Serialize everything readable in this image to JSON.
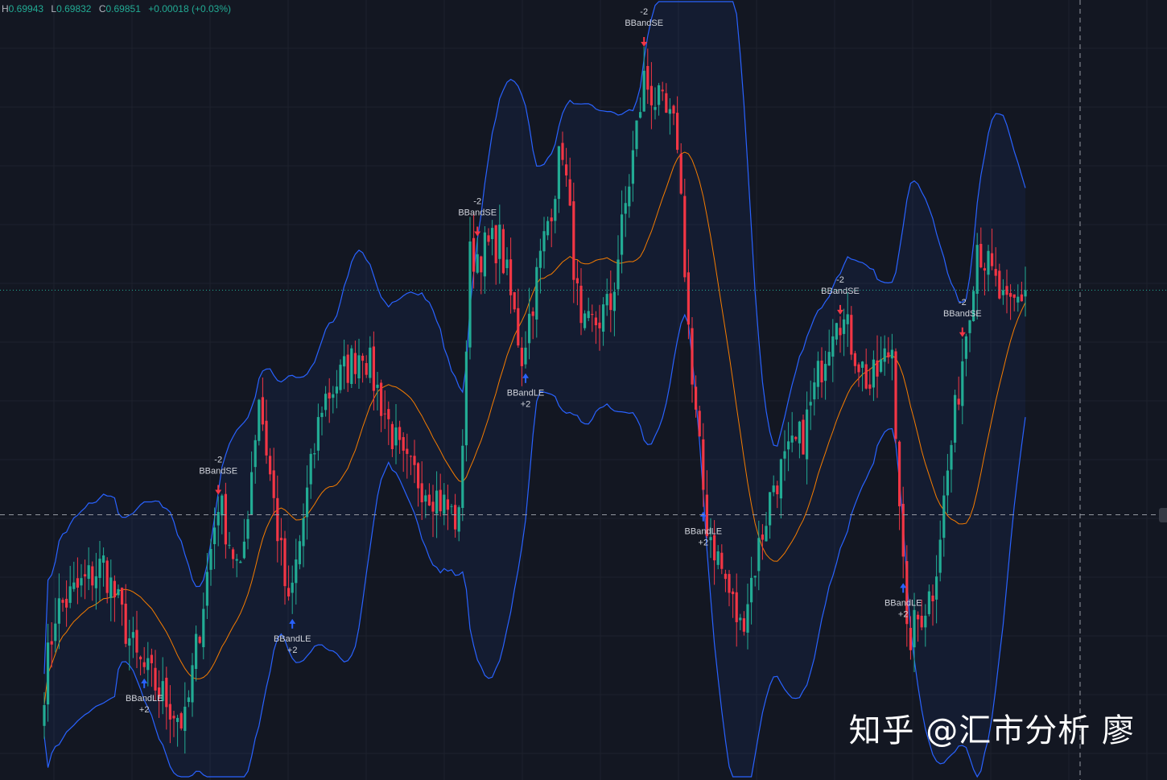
{
  "header": {
    "high_label": "H",
    "high": "0.69943",
    "low_label": "L",
    "low": "0.69832",
    "close_label": "C",
    "close": "0.69851",
    "change": "+0.00018 (+0.03%)"
  },
  "watermark": "知乎 @汇市分析 廖",
  "colors": {
    "background": "#131722",
    "up": "#22ab94",
    "down": "#f23645",
    "band": "#2962ff",
    "basis": "#f57c00",
    "long_signal": "#2962ff",
    "short_signal": "#f23645"
  },
  "chart_data": {
    "type": "candlestick",
    "indicator": "Bollinger Bands (basis, upper, lower)",
    "ylim": [
      0.6938,
      0.7013
    ],
    "grid": true,
    "last_price": 0.69851,
    "crosshair_price": 0.69635,
    "close_anchors": [
      {
        "bar": 0,
        "price": 0.69472
      },
      {
        "bar": 3,
        "price": 0.69542
      },
      {
        "bar": 16,
        "price": 0.69588
      },
      {
        "bar": 25,
        "price": 0.69495
      },
      {
        "bar": 38,
        "price": 0.69433
      },
      {
        "bar": 47,
        "price": 0.6965
      },
      {
        "bar": 53,
        "price": 0.69573
      },
      {
        "bar": 58,
        "price": 0.69751
      },
      {
        "bar": 66,
        "price": 0.69542
      },
      {
        "bar": 75,
        "price": 0.69743
      },
      {
        "bar": 86,
        "price": 0.69797
      },
      {
        "bar": 97,
        "price": 0.69681
      },
      {
        "bar": 105,
        "price": 0.69658
      },
      {
        "bar": 112,
        "price": 0.69627
      },
      {
        "bar": 115,
        "price": 0.69882
      },
      {
        "bar": 123,
        "price": 0.69898
      },
      {
        "bar": 129,
        "price": 0.69789
      },
      {
        "bar": 140,
        "price": 0.69991
      },
      {
        "bar": 145,
        "price": 0.69805
      },
      {
        "bar": 153,
        "price": 0.69836
      },
      {
        "bar": 162,
        "price": 0.70053
      },
      {
        "bar": 171,
        "price": 0.69998
      },
      {
        "bar": 175,
        "price": 0.69758
      },
      {
        "bar": 179,
        "price": 0.69627
      },
      {
        "bar": 188,
        "price": 0.69526
      },
      {
        "bar": 197,
        "price": 0.69666
      },
      {
        "bar": 205,
        "price": 0.69712
      },
      {
        "bar": 214,
        "price": 0.69836
      },
      {
        "bar": 223,
        "price": 0.69758
      },
      {
        "bar": 229,
        "price": 0.69797
      },
      {
        "bar": 233,
        "price": 0.69511
      },
      {
        "bar": 240,
        "price": 0.69565
      },
      {
        "bar": 247,
        "price": 0.69758
      },
      {
        "bar": 252,
        "price": 0.69898
      },
      {
        "bar": 260,
        "price": 0.69828
      },
      {
        "bar": 265,
        "price": 0.69851
      }
    ],
    "signals": [
      {
        "side": "short",
        "bar": 47,
        "name": "BBandSE",
        "qty": "-2"
      },
      {
        "side": "short",
        "bar": 117,
        "name": "BBandSE",
        "qty": "-2"
      },
      {
        "side": "short",
        "bar": 162,
        "name": "BBandSE",
        "qty": "-2"
      },
      {
        "side": "short",
        "bar": 215,
        "name": "BBandSE",
        "qty": "-2"
      },
      {
        "side": "short",
        "bar": 248,
        "name": "BBandSE",
        "qty": "-2"
      },
      {
        "side": "long",
        "bar": 27,
        "name": "BBandLE",
        "qty": "+2"
      },
      {
        "side": "long",
        "bar": 67,
        "name": "BBandLE",
        "qty": "+2"
      },
      {
        "side": "long",
        "bar": 130,
        "name": "BBandLE",
        "qty": "+2"
      },
      {
        "side": "long",
        "bar": 178,
        "name": "BBandLE",
        "qty": "+2"
      },
      {
        "side": "long",
        "bar": 232,
        "name": "BBandLE",
        "qty": "+2"
      }
    ]
  }
}
